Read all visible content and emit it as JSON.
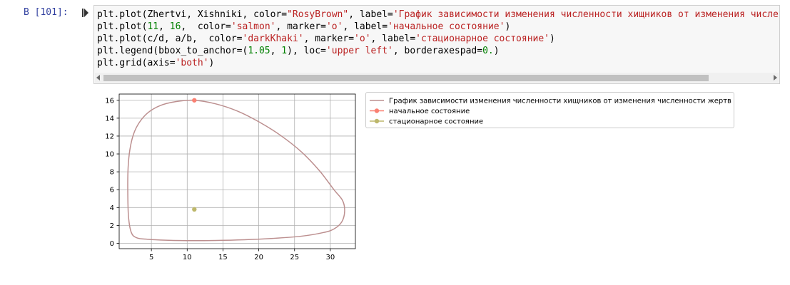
{
  "cell": {
    "prompt": "В [101]:",
    "code": [
      [
        {
          "t": "plt.plot(Zhertvi, Xishniki, color="
        },
        {
          "t": "\"RosyBrown\"",
          "c": "str"
        },
        {
          "t": ", label="
        },
        {
          "t": "'График зависимости изменения численности хищников от изменения численно",
          "c": "str"
        }
      ],
      [
        {
          "t": "plt.plot("
        },
        {
          "t": "11",
          "c": "num"
        },
        {
          "t": ", "
        },
        {
          "t": "16",
          "c": "num"
        },
        {
          "t": ",  color="
        },
        {
          "t": "'salmon'",
          "c": "str"
        },
        {
          "t": ", marker="
        },
        {
          "t": "'o'",
          "c": "str"
        },
        {
          "t": ", label="
        },
        {
          "t": "'начальное состояние'",
          "c": "str"
        },
        {
          "t": ")"
        }
      ],
      [
        {
          "t": "plt.plot(c/d, a/b,  color="
        },
        {
          "t": "'darkKhaki'",
          "c": "str"
        },
        {
          "t": ", marker="
        },
        {
          "t": "'o'",
          "c": "str"
        },
        {
          "t": ", label="
        },
        {
          "t": "'стационарное состояние'",
          "c": "str"
        },
        {
          "t": ")"
        }
      ],
      [
        {
          "t": "plt.legend(bbox_to_anchor=("
        },
        {
          "t": "1.05",
          "c": "num"
        },
        {
          "t": ", "
        },
        {
          "t": "1",
          "c": "num"
        },
        {
          "t": "), loc="
        },
        {
          "t": "'upper left'",
          "c": "str"
        },
        {
          "t": ", borderaxespad="
        },
        {
          "t": "0.",
          "c": "num"
        },
        {
          "t": ")"
        }
      ],
      [
        {
          "t": "plt.grid(axis="
        },
        {
          "t": "'both'",
          "c": "str"
        },
        {
          "t": ")"
        }
      ]
    ]
  },
  "chart_data": {
    "type": "line",
    "title": "",
    "xlabel": "",
    "ylabel": "",
    "xlim": [
      0.5,
      33.5
    ],
    "ylim": [
      -0.6,
      16.7
    ],
    "x_ticks": [
      5,
      10,
      15,
      20,
      25,
      30
    ],
    "y_ticks": [
      0,
      2,
      4,
      6,
      8,
      10,
      12,
      14,
      16
    ],
    "grid": true,
    "legend_position": "outside upper right",
    "series": [
      {
        "name": "График зависимости изменения численности хищников от изменения численности жертв",
        "color": "#bc8f8f",
        "kind": "line",
        "x": [
          11,
          14,
          17,
          20,
          23,
          26,
          28.5,
          30.5,
          31.7,
          32,
          31.6,
          30.5,
          29,
          26,
          22,
          18,
          14,
          10,
          7,
          4.5,
          3,
          2.2,
          1.8,
          1.7,
          1.75,
          2,
          2.5,
          3.3,
          4.5,
          6.2,
          8.4,
          11
        ],
        "y": [
          16,
          15.6,
          14.8,
          13.6,
          12.1,
          10.2,
          8.1,
          6,
          4.8,
          3.6,
          2.4,
          1.6,
          1.2,
          0.8,
          0.55,
          0.4,
          0.32,
          0.3,
          0.35,
          0.45,
          0.6,
          1.2,
          3,
          6,
          8.5,
          10.5,
          12.2,
          13.5,
          14.6,
          15.4,
          15.85,
          16
        ]
      },
      {
        "name": "начальное состояние",
        "color": "#fa8072",
        "kind": "point",
        "x": [
          11
        ],
        "y": [
          16
        ]
      },
      {
        "name": "стационарное состояние",
        "color": "#bdb76b",
        "kind": "point",
        "x": [
          11
        ],
        "y": [
          3.8
        ]
      }
    ]
  }
}
